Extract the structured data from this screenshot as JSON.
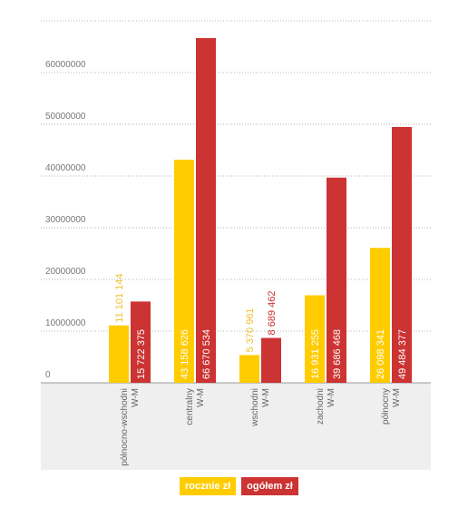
{
  "chart_data": {
    "type": "bar",
    "categories": [
      [
        "północno-wschodni",
        "W-M"
      ],
      [
        "centralny",
        "W-M"
      ],
      [
        "wschodni",
        "W-M"
      ],
      [
        "zachodni",
        "W-M"
      ],
      [
        "północny",
        "W-M"
      ]
    ],
    "series": [
      {
        "name": "rocznie zł",
        "color": "#ffcc00",
        "values": [
          11101144,
          43158626,
          5370961,
          16931255,
          26098341
        ],
        "labels": [
          "11 101 144",
          "43 158 626",
          "5 370 961",
          "16 931 255",
          "26 098 341"
        ]
      },
      {
        "name": "ogółem zł",
        "color": "#cc3333",
        "values": [
          15722375,
          66670534,
          8689462,
          39686468,
          49484377
        ],
        "labels": [
          "15 722 375",
          "66 670 534",
          "8 689 462",
          "39 686 468",
          "49 484 377"
        ]
      }
    ],
    "yticks": [
      "0",
      "10000000",
      "20000000",
      "30000000",
      "40000000",
      "50000000",
      "60000000"
    ],
    "ylim": [
      0,
      70000000
    ],
    "grid": true,
    "legend_position": "bottom-center"
  }
}
